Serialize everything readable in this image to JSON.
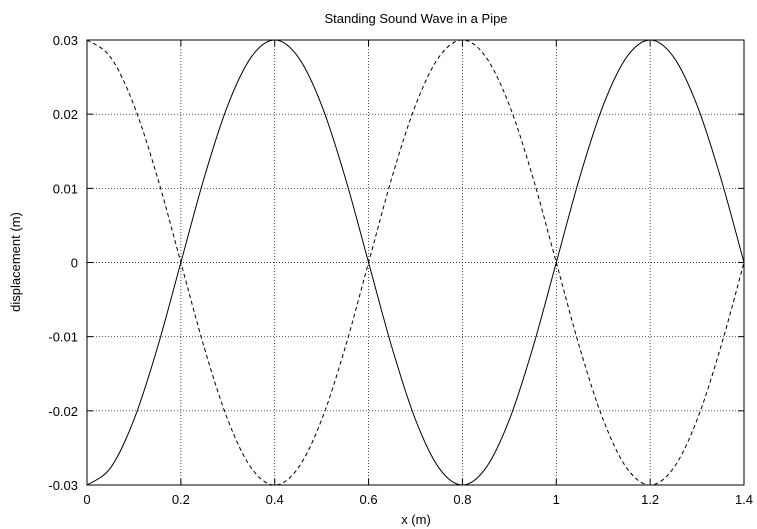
{
  "chart_data": {
    "type": "line",
    "title": "Standing Sound Wave in a Pipe",
    "xlabel": "x (m)",
    "ylabel": "displacement (m)",
    "xlim": [
      0,
      1.4
    ],
    "ylim": [
      -0.03,
      0.03
    ],
    "grid": true,
    "x_ticks": [
      0,
      0.2,
      0.4,
      0.6,
      0.8,
      1.0,
      1.2,
      1.4
    ],
    "x_tick_labels": [
      "0",
      "0.2",
      "0.4",
      "0.6",
      "0.8",
      "1",
      "1.2",
      "1.4"
    ],
    "y_ticks": [
      -0.03,
      -0.02,
      -0.01,
      0,
      0.01,
      0.02,
      0.03
    ],
    "y_tick_labels": [
      "-0.03",
      "-0.02",
      "-0.01",
      "0",
      "0.01",
      "0.02",
      "0.03"
    ],
    "series": [
      {
        "style": "solid",
        "color": "#000000",
        "x": [
          0,
          0.05,
          0.1,
          0.15,
          0.2,
          0.25,
          0.3,
          0.35,
          0.4,
          0.45,
          0.5,
          0.55,
          0.6,
          0.65,
          0.7,
          0.75,
          0.8,
          0.85,
          0.9,
          0.95,
          1.0,
          1.05,
          1.1,
          1.15,
          1.2,
          1.25,
          1.3,
          1.35,
          1.4
        ],
        "values": [
          -0.03,
          -0.0277,
          -0.0212,
          -0.0115,
          0,
          0.0115,
          0.0212,
          0.0277,
          0.03,
          0.0277,
          0.0212,
          0.0115,
          0,
          -0.0115,
          -0.0212,
          -0.0277,
          -0.03,
          -0.0277,
          -0.0212,
          -0.0115,
          0,
          0.0115,
          0.0212,
          0.0277,
          0.03,
          0.0277,
          0.0212,
          0.0115,
          0
        ]
      },
      {
        "style": "dashed",
        "color": "#000000",
        "x": [
          0,
          0.05,
          0.1,
          0.15,
          0.2,
          0.25,
          0.3,
          0.35,
          0.4,
          0.45,
          0.5,
          0.55,
          0.6,
          0.65,
          0.7,
          0.75,
          0.8,
          0.85,
          0.9,
          0.95,
          1.0,
          1.05,
          1.1,
          1.15,
          1.2,
          1.25,
          1.3,
          1.35,
          1.4
        ],
        "values": [
          0.03,
          0.0277,
          0.0212,
          0.0115,
          0,
          -0.0115,
          -0.0212,
          -0.0277,
          -0.03,
          -0.0277,
          -0.0212,
          -0.0115,
          0,
          0.0115,
          0.0212,
          0.0277,
          0.03,
          0.0277,
          0.0212,
          0.0115,
          0,
          -0.0115,
          -0.0212,
          -0.0277,
          -0.03,
          -0.0277,
          -0.0212,
          -0.0115,
          0
        ]
      }
    ]
  }
}
